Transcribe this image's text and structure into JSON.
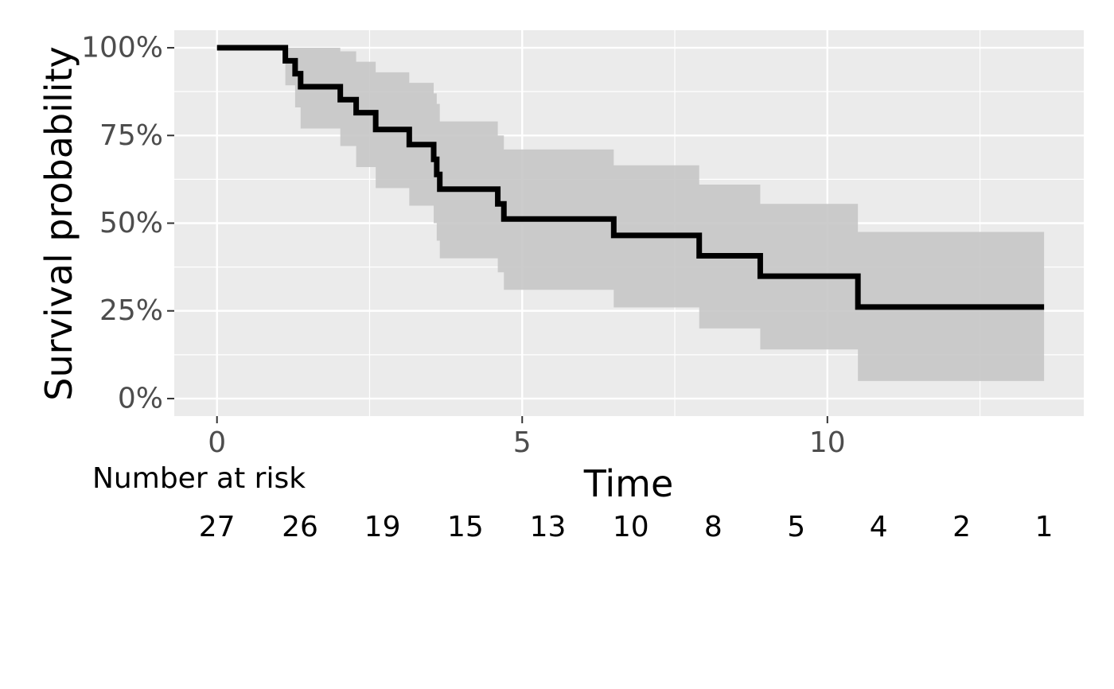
{
  "chart_data": {
    "type": "line",
    "subtype": "kaplan-meier",
    "xlabel": "Time",
    "ylabel": "Survival probability",
    "xlim": [
      -0.7,
      14.2
    ],
    "ylim": [
      -0.05,
      1.05
    ],
    "x_ticks": [
      0,
      5,
      10
    ],
    "y_ticks": [
      0,
      0.25,
      0.5,
      0.75,
      1.0
    ],
    "x_tick_labels": [
      "0",
      "5",
      "10"
    ],
    "y_tick_labels": [
      "0%",
      "25%",
      "50%",
      "75%",
      "100%"
    ],
    "grid": true,
    "legend": "none",
    "colors": {
      "panel_background": "#ebebeb",
      "gridline": "#ffffff",
      "survival_line": "#000000",
      "confidence_band": "#c6c6c6"
    },
    "series": [
      {
        "x": [
          0,
          1.12,
          1.28,
          1.37,
          2.02,
          2.28,
          2.6,
          3.15,
          3.55,
          3.6,
          3.65,
          4.6,
          4.7,
          6.5,
          7.9,
          8.9,
          10.5,
          13.55
        ],
        "y": [
          1.0,
          0.963,
          0.926,
          0.889,
          0.852,
          0.815,
          0.767,
          0.724,
          0.682,
          0.639,
          0.597,
          0.555,
          0.512,
          0.465,
          0.407,
          0.349,
          0.261,
          0.261
        ],
        "lower": [
          1.0,
          0.893,
          0.83,
          0.77,
          0.72,
          0.66,
          0.6,
          0.55,
          0.5,
          0.45,
          0.4,
          0.36,
          0.31,
          0.26,
          0.2,
          0.14,
          0.05,
          0.05
        ],
        "upper": [
          1.0,
          1.0,
          1.0,
          1.0,
          0.99,
          0.96,
          0.93,
          0.9,
          0.87,
          0.84,
          0.79,
          0.75,
          0.71,
          0.665,
          0.61,
          0.555,
          0.475,
          0.475
        ]
      }
    ],
    "risk_table": {
      "title": "Number at risk",
      "times": [
        0,
        1.36,
        2.71,
        4.07,
        5.42,
        6.78,
        8.13,
        9.49,
        10.84,
        12.2,
        13.55
      ],
      "counts": [
        "27",
        "26",
        "19",
        "15",
        "13",
        "10",
        "8",
        "5",
        "4",
        "2",
        "1"
      ]
    }
  }
}
